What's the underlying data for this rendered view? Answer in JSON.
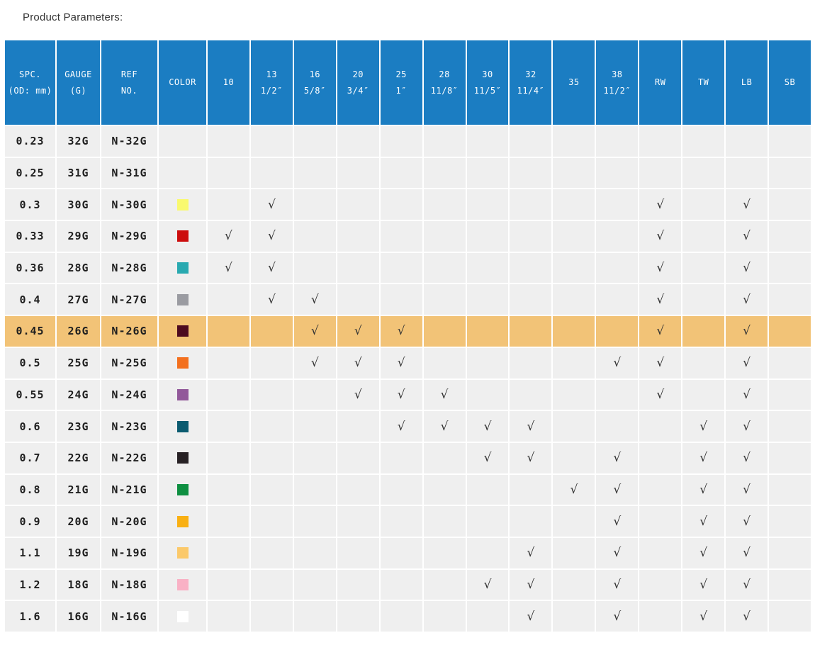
{
  "title": "Product Parameters:",
  "colors": {
    "header_bg": "#1b7dc2",
    "header_text": "#ffffff",
    "cell_bg": "#efefef",
    "row_divider": "#ffffff",
    "highlight_bg": "#f2c377",
    "body_text": "#1f1f1f",
    "check": "#333333",
    "title_text": "#333333",
    "page_bg": "#ffffff"
  },
  "table": {
    "check_glyph": "√",
    "columns": [
      {
        "key": "spc",
        "label": "SPC.",
        "sub": "(OD: mm)"
      },
      {
        "key": "gauge",
        "label": "GAUGE",
        "sub": "(G)"
      },
      {
        "key": "ref",
        "label": "REF",
        "sub": "NO."
      },
      {
        "key": "color",
        "label": "COLOR",
        "sub": ""
      },
      {
        "key": "10",
        "label": "10",
        "sub": ""
      },
      {
        "key": "13",
        "label": "13",
        "sub": "1/2″"
      },
      {
        "key": "16",
        "label": "16",
        "sub": "5/8″"
      },
      {
        "key": "20",
        "label": "20",
        "sub": "3/4″"
      },
      {
        "key": "25",
        "label": "25",
        "sub": "1″"
      },
      {
        "key": "28",
        "label": "28",
        "sub": "11/8″"
      },
      {
        "key": "30",
        "label": "30",
        "sub": "11/5″"
      },
      {
        "key": "32",
        "label": "32",
        "sub": "11/4″"
      },
      {
        "key": "35",
        "label": "35",
        "sub": ""
      },
      {
        "key": "38",
        "label": "38",
        "sub": "11/2″"
      },
      {
        "key": "RW",
        "label": "RW",
        "sub": ""
      },
      {
        "key": "TW",
        "label": "TW",
        "sub": ""
      },
      {
        "key": "LB",
        "label": "LB",
        "sub": ""
      },
      {
        "key": "SB",
        "label": "SB",
        "sub": ""
      }
    ],
    "rows": [
      {
        "spc": "0.23",
        "gauge": "32G",
        "ref": "N-32G",
        "color": null,
        "checks": [],
        "highlighted": false
      },
      {
        "spc": "0.25",
        "gauge": "31G",
        "ref": "N-31G",
        "color": null,
        "checks": [],
        "highlighted": false
      },
      {
        "spc": "0.3",
        "gauge": "30G",
        "ref": "N-30G",
        "color": "#f9f96e",
        "checks": [
          "13",
          "RW",
          "LB"
        ],
        "highlighted": false
      },
      {
        "spc": "0.33",
        "gauge": "29G",
        "ref": "N-29G",
        "color": "#cc0d0d",
        "checks": [
          "10",
          "13",
          "RW",
          "LB"
        ],
        "highlighted": false
      },
      {
        "spc": "0.36",
        "gauge": "28G",
        "ref": "N-28G",
        "color": "#29a9b0",
        "checks": [
          "10",
          "13",
          "RW",
          "LB"
        ],
        "highlighted": false
      },
      {
        "spc": "0.4",
        "gauge": "27G",
        "ref": "N-27G",
        "color": "#9a9ba1",
        "checks": [
          "13",
          "16",
          "RW",
          "LB"
        ],
        "highlighted": false
      },
      {
        "spc": "0.45",
        "gauge": "26G",
        "ref": "N-26G",
        "color": "#4d0a1f",
        "checks": [
          "16",
          "20",
          "25",
          "RW",
          "LB"
        ],
        "highlighted": true
      },
      {
        "spc": "0.5",
        "gauge": "25G",
        "ref": "N-25G",
        "color": "#f3701e",
        "checks": [
          "16",
          "20",
          "25",
          "38",
          "RW",
          "LB"
        ],
        "highlighted": false
      },
      {
        "spc": "0.55",
        "gauge": "24G",
        "ref": "N-24G",
        "color": "#92599a",
        "checks": [
          "20",
          "25",
          "28",
          "RW",
          "LB"
        ],
        "highlighted": false
      },
      {
        "spc": "0.6",
        "gauge": "23G",
        "ref": "N-23G",
        "color": "#0b5b70",
        "checks": [
          "25",
          "28",
          "30",
          "32",
          "TW",
          "LB"
        ],
        "highlighted": false
      },
      {
        "spc": "0.7",
        "gauge": "22G",
        "ref": "N-22G",
        "color": "#272124",
        "checks": [
          "30",
          "32",
          "38",
          "TW",
          "LB"
        ],
        "highlighted": false
      },
      {
        "spc": "0.8",
        "gauge": "21G",
        "ref": "N-21G",
        "color": "#0e8f41",
        "checks": [
          "35",
          "38",
          "TW",
          "LB"
        ],
        "highlighted": false
      },
      {
        "spc": "0.9",
        "gauge": "20G",
        "ref": "N-20G",
        "color": "#f9b013",
        "checks": [
          "38",
          "TW",
          "LB"
        ],
        "highlighted": false
      },
      {
        "spc": "1.1",
        "gauge": "19G",
        "ref": "N-19G",
        "color": "#fbc96a",
        "checks": [
          "32",
          "38",
          "TW",
          "LB"
        ],
        "highlighted": false
      },
      {
        "spc": "1.2",
        "gauge": "18G",
        "ref": "N-18G",
        "color": "#f9b1c5",
        "checks": [
          "30",
          "32",
          "38",
          "TW",
          "LB"
        ],
        "highlighted": false
      },
      {
        "spc": "1.6",
        "gauge": "16G",
        "ref": "N-16G",
        "color": "#ffffff",
        "checks": [
          "32",
          "38",
          "TW",
          "LB"
        ],
        "highlighted": false
      }
    ]
  }
}
